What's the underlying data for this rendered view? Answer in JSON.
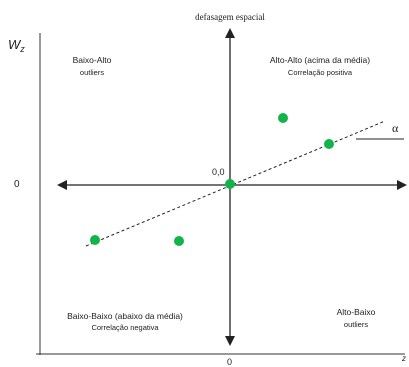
{
  "axes": {
    "y_axis_label": "defasagem espacial",
    "wz_label": "W",
    "wz_subscript": "z",
    "y_zero_label": "0",
    "origin_label": "0,0",
    "x_zero_label": "0",
    "x_axis_label": "z"
  },
  "quadrants": {
    "top_left": {
      "title": "Baixo-Alto",
      "subtitle": "outliers"
    },
    "top_right": {
      "title": "Alto-Alto (acima da média)",
      "subtitle": "Correlação positiva"
    },
    "bottom_left": {
      "title": "Baixo-Baixo (abaixo da média)",
      "subtitle": "Correlação negativa"
    },
    "bottom_right": {
      "title": "Alto-Baixo",
      "subtitle": "outliers"
    }
  },
  "slope_label": "α",
  "colors": {
    "point": "#11b34a",
    "line": "#222222"
  }
}
